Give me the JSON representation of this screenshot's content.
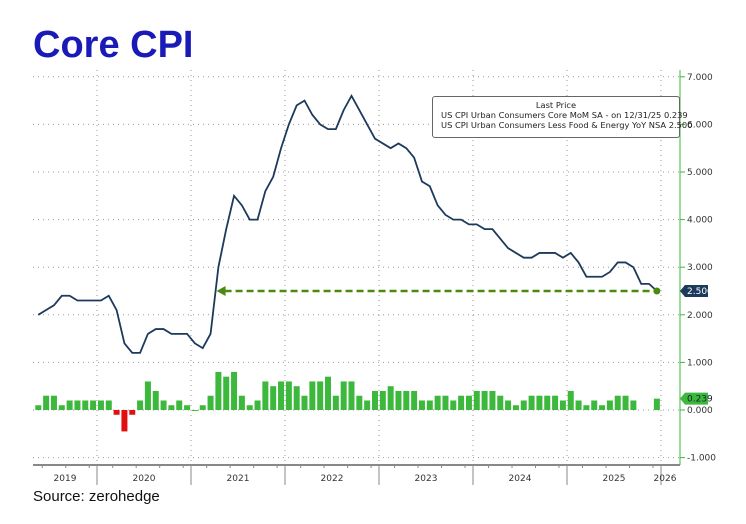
{
  "title": "Core CPI",
  "source": "Source: zerohedge",
  "chart_data": {
    "type": "bar+line",
    "title": "Core CPI",
    "legend": {
      "header": "Last Price",
      "position": "top-right",
      "entries": [
        {
          "name": "US CPI Urban Consumers Core MoM SA -  on 12/31/25 0.239",
          "color": "#3cb83c"
        },
        {
          "name": "US CPI Urban Consumers Less Food & Energy YoY NSA 2.500",
          "color": "#1c3a5c"
        }
      ]
    },
    "x_start": "2019-05",
    "x_end": "2025-12",
    "frequency": "monthly",
    "xtick_labels": [
      "2019",
      "2020",
      "2021",
      "2022",
      "2023",
      "2024",
      "2025",
      "2026"
    ],
    "ylim": [
      -1.2,
      7.2
    ],
    "ytick_labels": [
      "7.000",
      "6.000",
      "5.000",
      "4.000",
      "3.000",
      "2.000",
      "1.000",
      "0.000",
      "-1.000"
    ],
    "yticks": [
      7,
      6,
      5,
      4,
      3,
      2,
      1,
      0,
      -1
    ],
    "grid": true,
    "series": [
      {
        "name": "US CPI Urban Consumers Less Food & Energy YoY NSA",
        "type": "line",
        "color": "#1c3a5c",
        "last_label": "2.500",
        "values": [
          2.0,
          2.1,
          2.2,
          2.4,
          2.4,
          2.3,
          2.3,
          2.3,
          2.3,
          2.4,
          2.1,
          1.4,
          1.2,
          1.2,
          1.6,
          1.7,
          1.7,
          1.6,
          1.6,
          1.6,
          1.4,
          1.3,
          1.6,
          3.0,
          3.8,
          4.5,
          4.3,
          4.0,
          4.0,
          4.6,
          4.9,
          5.5,
          6.0,
          6.4,
          6.5,
          6.2,
          6.0,
          5.9,
          5.9,
          6.3,
          6.6,
          6.3,
          6.0,
          5.7,
          5.6,
          5.5,
          5.6,
          5.5,
          5.3,
          4.8,
          4.7,
          4.3,
          4.1,
          4.0,
          4.0,
          3.9,
          3.9,
          3.8,
          3.8,
          3.6,
          3.4,
          3.3,
          3.2,
          3.2,
          3.3,
          3.3,
          3.3,
          3.2,
          3.3,
          3.1,
          2.8,
          2.8,
          2.8,
          2.9,
          3.1,
          3.1,
          3.0,
          2.65,
          2.65,
          2.5
        ]
      },
      {
        "name": "US CPI Urban Consumers Core MoM SA",
        "type": "bar",
        "color": "#3cb83c",
        "negative_color": "#e01010",
        "last_label": "0.239",
        "values": [
          0.1,
          0.3,
          0.3,
          0.1,
          0.2,
          0.2,
          0.2,
          0.2,
          0.2,
          0.2,
          -0.1,
          -0.45,
          -0.1,
          0.2,
          0.6,
          0.4,
          0.2,
          0.1,
          0.2,
          0.1,
          0.0,
          0.1,
          0.3,
          0.8,
          0.7,
          0.8,
          0.3,
          0.1,
          0.2,
          0.6,
          0.5,
          0.6,
          0.6,
          0.5,
          0.3,
          0.6,
          0.6,
          0.7,
          0.3,
          0.6,
          0.6,
          0.3,
          0.2,
          0.4,
          0.4,
          0.5,
          0.4,
          0.4,
          0.4,
          0.2,
          0.2,
          0.3,
          0.3,
          0.2,
          0.3,
          0.3,
          0.4,
          0.4,
          0.4,
          0.3,
          0.2,
          0.1,
          0.2,
          0.3,
          0.3,
          0.3,
          0.3,
          0.2,
          0.4,
          0.2,
          0.1,
          0.2,
          0.1,
          0.2,
          0.3,
          0.3,
          0.2,
          null,
          null,
          0.239
        ]
      }
    ],
    "annotation": {
      "type": "dashed-arrow",
      "value": 2.5,
      "from": "2021-03",
      "to": "2025-12",
      "color": "#4a8a10"
    }
  }
}
